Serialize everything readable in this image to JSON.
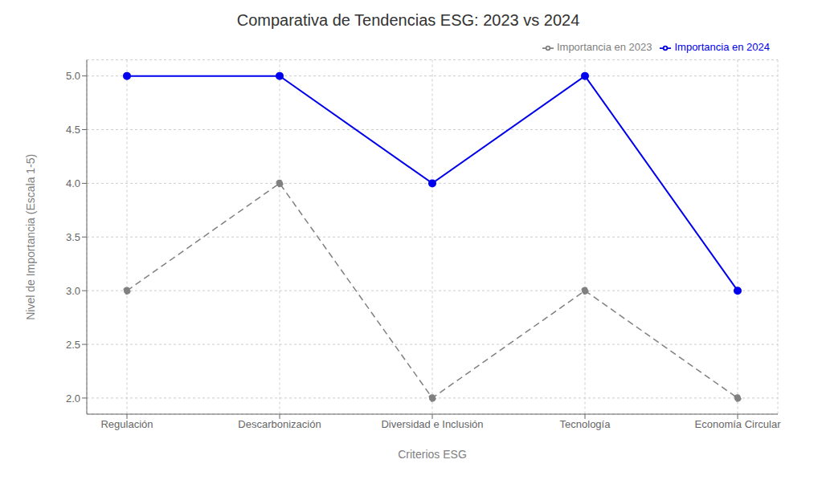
{
  "chart_data": {
    "type": "line",
    "title": "Comparativa de Tendencias ESG: 2023 vs 2024",
    "xlabel": "Criterios ESG",
    "ylabel": "Nivel de Importancia (Escala 1-5)",
    "categories": [
      "Regulación",
      "Descarbonización",
      "Diversidad e Inclusión",
      "Tecnología",
      "Economía Circular"
    ],
    "series": [
      {
        "name": "Importancia en 2023",
        "color": "#808080",
        "values": [
          3,
          4,
          2,
          3,
          2
        ],
        "line_style": "dashed",
        "marker": "circle"
      },
      {
        "name": "Importancia en 2024",
        "color": "#0000ee",
        "values": [
          5,
          5,
          4,
          5,
          3
        ],
        "line_style": "solid",
        "marker": "circle"
      }
    ],
    "ylim": [
      1.85,
      5.15
    ],
    "yticks": [
      {
        "value": 2.0,
        "label": "2.0"
      },
      2.5,
      {
        "value": 3.0,
        "label": "3.0"
      },
      3.5,
      {
        "value": 4.0,
        "label": "4.0"
      },
      4.5,
      {
        "value": 5.0,
        "label": "5.0"
      }
    ],
    "grid": true,
    "legend": "upper right"
  }
}
